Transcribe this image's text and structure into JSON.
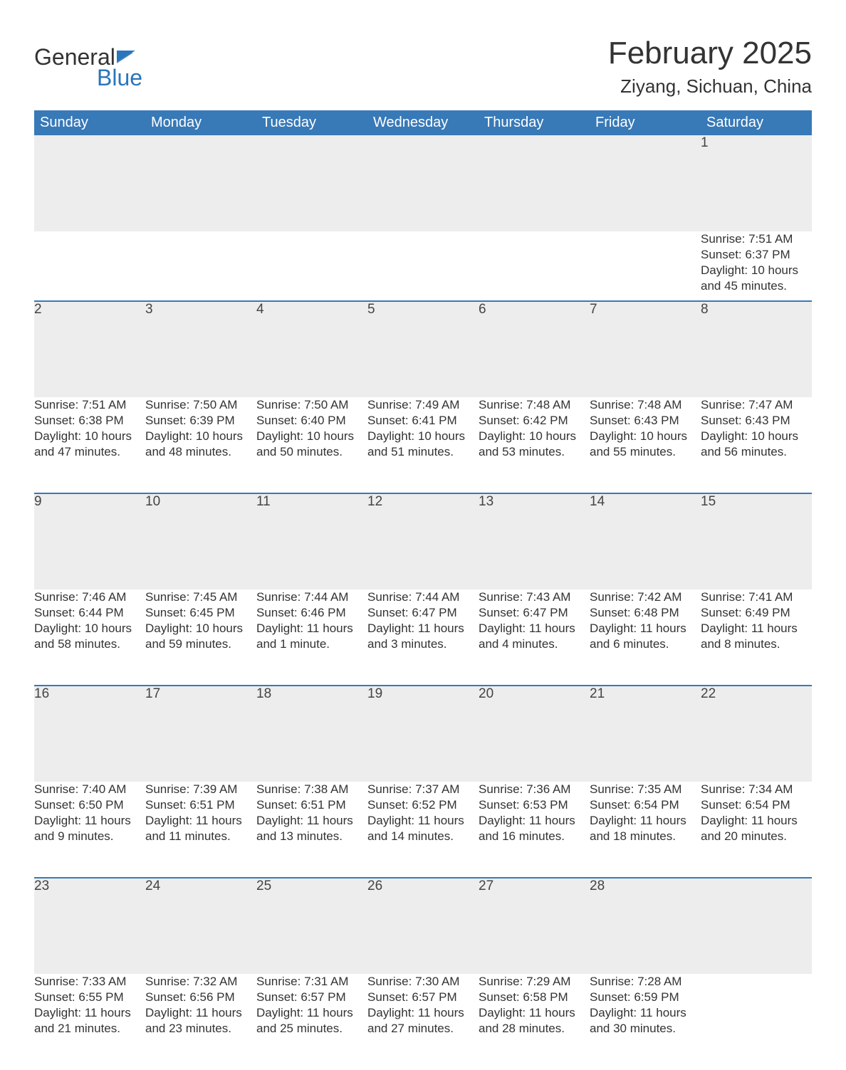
{
  "logo": {
    "line1": "General",
    "line2": "Blue",
    "flag_color": "#2a75bb"
  },
  "title": "February 2025",
  "location": "Ziyang, Sichuan, China",
  "colors": {
    "header_bg": "#3879b7",
    "header_text": "#ffffff",
    "daynum_bg": "#ededed",
    "week_rule": "#3879b7",
    "text": "#333333",
    "accent": "#2a75bb",
    "background": "#ffffff"
  },
  "weekday_labels": [
    "Sunday",
    "Monday",
    "Tuesday",
    "Wednesday",
    "Thursday",
    "Friday",
    "Saturday"
  ],
  "labels": {
    "sunrise": "Sunrise",
    "sunset": "Sunset",
    "daylight": "Daylight"
  },
  "weeks": [
    [
      null,
      null,
      null,
      null,
      null,
      null,
      {
        "day": "1",
        "sunrise": "7:51 AM",
        "sunset": "6:37 PM",
        "daylight": "10 hours and 45 minutes."
      }
    ],
    [
      {
        "day": "2",
        "sunrise": "7:51 AM",
        "sunset": "6:38 PM",
        "daylight": "10 hours and 47 minutes."
      },
      {
        "day": "3",
        "sunrise": "7:50 AM",
        "sunset": "6:39 PM",
        "daylight": "10 hours and 48 minutes."
      },
      {
        "day": "4",
        "sunrise": "7:50 AM",
        "sunset": "6:40 PM",
        "daylight": "10 hours and 50 minutes."
      },
      {
        "day": "5",
        "sunrise": "7:49 AM",
        "sunset": "6:41 PM",
        "daylight": "10 hours and 51 minutes."
      },
      {
        "day": "6",
        "sunrise": "7:48 AM",
        "sunset": "6:42 PM",
        "daylight": "10 hours and 53 minutes."
      },
      {
        "day": "7",
        "sunrise": "7:48 AM",
        "sunset": "6:43 PM",
        "daylight": "10 hours and 55 minutes."
      },
      {
        "day": "8",
        "sunrise": "7:47 AM",
        "sunset": "6:43 PM",
        "daylight": "10 hours and 56 minutes."
      }
    ],
    [
      {
        "day": "9",
        "sunrise": "7:46 AM",
        "sunset": "6:44 PM",
        "daylight": "10 hours and 58 minutes."
      },
      {
        "day": "10",
        "sunrise": "7:45 AM",
        "sunset": "6:45 PM",
        "daylight": "10 hours and 59 minutes."
      },
      {
        "day": "11",
        "sunrise": "7:44 AM",
        "sunset": "6:46 PM",
        "daylight": "11 hours and 1 minute."
      },
      {
        "day": "12",
        "sunrise": "7:44 AM",
        "sunset": "6:47 PM",
        "daylight": "11 hours and 3 minutes."
      },
      {
        "day": "13",
        "sunrise": "7:43 AM",
        "sunset": "6:47 PM",
        "daylight": "11 hours and 4 minutes."
      },
      {
        "day": "14",
        "sunrise": "7:42 AM",
        "sunset": "6:48 PM",
        "daylight": "11 hours and 6 minutes."
      },
      {
        "day": "15",
        "sunrise": "7:41 AM",
        "sunset": "6:49 PM",
        "daylight": "11 hours and 8 minutes."
      }
    ],
    [
      {
        "day": "16",
        "sunrise": "7:40 AM",
        "sunset": "6:50 PM",
        "daylight": "11 hours and 9 minutes."
      },
      {
        "day": "17",
        "sunrise": "7:39 AM",
        "sunset": "6:51 PM",
        "daylight": "11 hours and 11 minutes."
      },
      {
        "day": "18",
        "sunrise": "7:38 AM",
        "sunset": "6:51 PM",
        "daylight": "11 hours and 13 minutes."
      },
      {
        "day": "19",
        "sunrise": "7:37 AM",
        "sunset": "6:52 PM",
        "daylight": "11 hours and 14 minutes."
      },
      {
        "day": "20",
        "sunrise": "7:36 AM",
        "sunset": "6:53 PM",
        "daylight": "11 hours and 16 minutes."
      },
      {
        "day": "21",
        "sunrise": "7:35 AM",
        "sunset": "6:54 PM",
        "daylight": "11 hours and 18 minutes."
      },
      {
        "day": "22",
        "sunrise": "7:34 AM",
        "sunset": "6:54 PM",
        "daylight": "11 hours and 20 minutes."
      }
    ],
    [
      {
        "day": "23",
        "sunrise": "7:33 AM",
        "sunset": "6:55 PM",
        "daylight": "11 hours and 21 minutes."
      },
      {
        "day": "24",
        "sunrise": "7:32 AM",
        "sunset": "6:56 PM",
        "daylight": "11 hours and 23 minutes."
      },
      {
        "day": "25",
        "sunrise": "7:31 AM",
        "sunset": "6:57 PM",
        "daylight": "11 hours and 25 minutes."
      },
      {
        "day": "26",
        "sunrise": "7:30 AM",
        "sunset": "6:57 PM",
        "daylight": "11 hours and 27 minutes."
      },
      {
        "day": "27",
        "sunrise": "7:29 AM",
        "sunset": "6:58 PM",
        "daylight": "11 hours and 28 minutes."
      },
      {
        "day": "28",
        "sunrise": "7:28 AM",
        "sunset": "6:59 PM",
        "daylight": "11 hours and 30 minutes."
      },
      null
    ]
  ]
}
